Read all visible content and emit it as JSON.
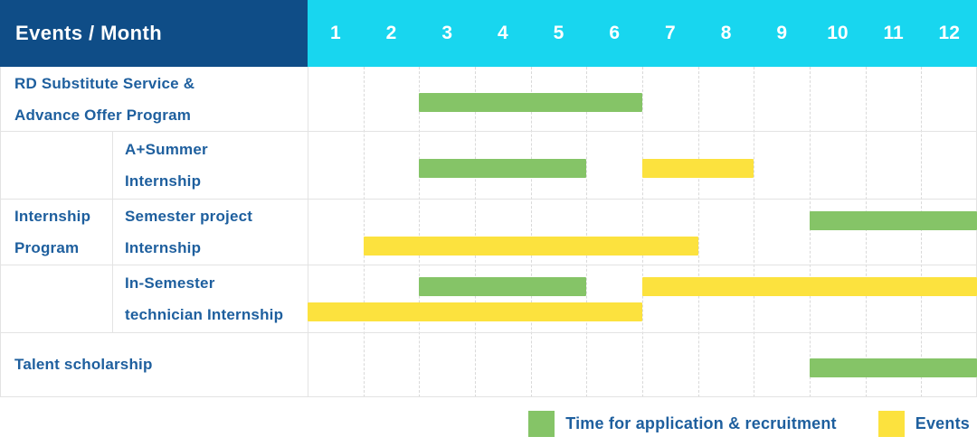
{
  "header": {
    "title": "Events / Month",
    "months": [
      "1",
      "2",
      "3",
      "4",
      "5",
      "6",
      "7",
      "8",
      "9",
      "10",
      "11",
      "12"
    ]
  },
  "colors": {
    "header_bg": "#0F4D87",
    "month_strip_bg": "#18D6EF",
    "label_text": "#1E5F9E",
    "application": "#85C467",
    "events": "#FCE23E"
  },
  "gantt": {
    "group": {
      "label_lines": [
        "Internship",
        "Program"
      ]
    },
    "rows": [
      {
        "label_lines": [
          "RD Substitute Service &",
          "Advance Offer Program"
        ],
        "tracks": [
          [
            {
              "kind": "application",
              "start": 3,
              "end": 6
            }
          ]
        ]
      },
      {
        "label_lines": [
          "A+Summer",
          "Internship"
        ],
        "tracks": [
          [
            {
              "kind": "application",
              "start": 3,
              "end": 5
            },
            {
              "kind": "events",
              "start": 7,
              "end": 8
            }
          ]
        ]
      },
      {
        "label_lines": [
          "Semester project",
          "Internship"
        ],
        "tracks": [
          [
            {
              "kind": "application",
              "start": 10,
              "end": 12
            }
          ],
          [
            {
              "kind": "events",
              "start": 2,
              "end": 7
            }
          ]
        ]
      },
      {
        "label_lines": [
          "In-Semester",
          "technician Internship"
        ],
        "tracks": [
          [
            {
              "kind": "application",
              "start": 3,
              "end": 5
            },
            {
              "kind": "events",
              "start": 7,
              "end": 12
            }
          ],
          [
            {
              "kind": "events",
              "start": 1,
              "end": 6
            }
          ]
        ]
      },
      {
        "label_lines": [
          "Talent scholarship"
        ],
        "tracks": [
          [
            {
              "kind": "application",
              "start": 10,
              "end": 12
            }
          ]
        ]
      }
    ]
  },
  "legend": {
    "items": [
      {
        "kind": "application",
        "label": "Time for application & recruitment"
      },
      {
        "kind": "events",
        "label": "Events"
      }
    ]
  },
  "chart_data": {
    "type": "table",
    "title": "Events / Month",
    "xlabel": "Month",
    "x_ticks": [
      1,
      2,
      3,
      4,
      5,
      6,
      7,
      8,
      9,
      10,
      11,
      12
    ],
    "legend": [
      {
        "name": "Time for application & recruitment",
        "color": "#85C467"
      },
      {
        "name": "Events",
        "color": "#FCE23E"
      }
    ],
    "rows": [
      {
        "event": "RD Substitute Service & Advance Offer Program",
        "bars": [
          {
            "type": "application & recruitment",
            "start_month": 3,
            "end_month": 6
          }
        ]
      },
      {
        "event": "Internship Program - A+Summer Internship",
        "bars": [
          {
            "type": "application & recruitment",
            "start_month": 3,
            "end_month": 5
          },
          {
            "type": "events",
            "start_month": 7,
            "end_month": 8
          }
        ]
      },
      {
        "event": "Internship Program - Semester project Internship",
        "bars": [
          {
            "type": "application & recruitment",
            "start_month": 10,
            "end_month": 12
          },
          {
            "type": "events",
            "start_month": 2,
            "end_month": 7
          }
        ]
      },
      {
        "event": "Internship Program - In-Semester technician Internship",
        "bars": [
          {
            "type": "application & recruitment",
            "start_month": 3,
            "end_month": 5
          },
          {
            "type": "events",
            "start_month": 7,
            "end_month": 12
          },
          {
            "type": "events",
            "start_month": 1,
            "end_month": 6
          }
        ]
      },
      {
        "event": "Talent scholarship",
        "bars": [
          {
            "type": "application & recruitment",
            "start_month": 10,
            "end_month": 12
          }
        ]
      }
    ]
  }
}
